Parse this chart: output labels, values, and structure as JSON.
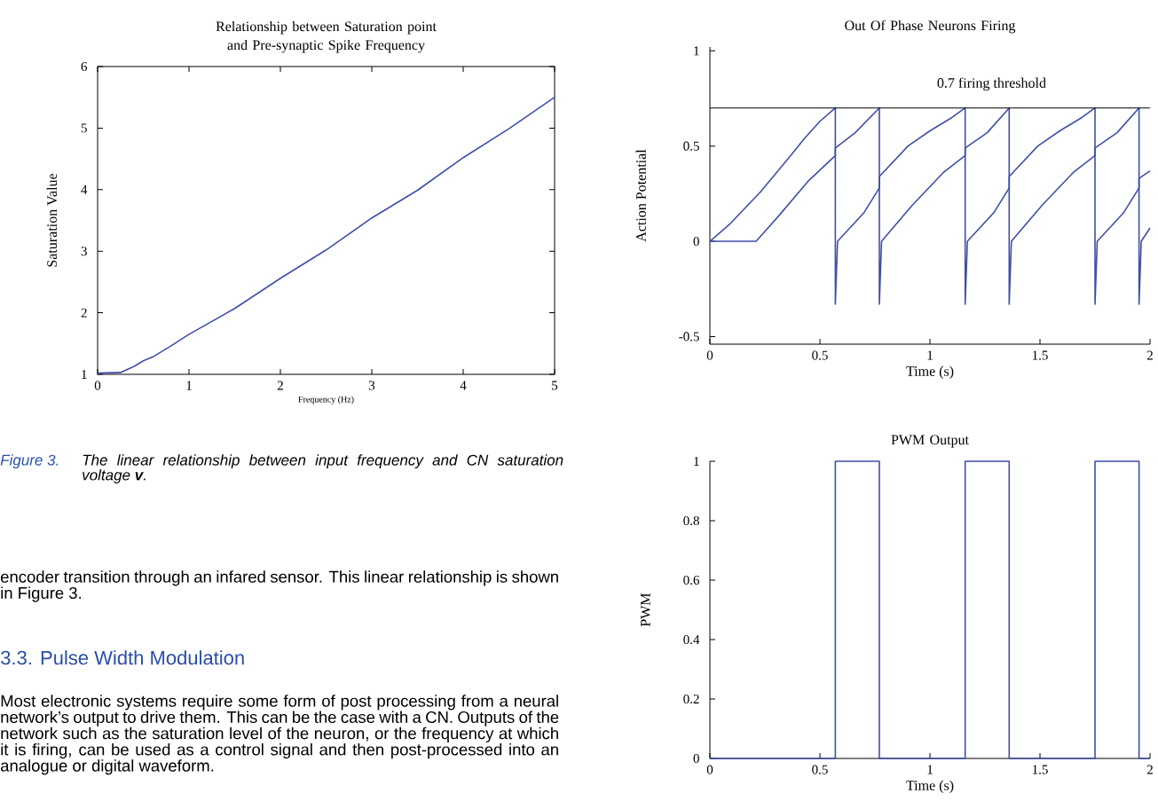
{
  "chart_data": [
    {
      "type": "line",
      "title": "Relationship between Saturation point and Pre-synaptic Spike Frequency",
      "xlabel": "Frequency (Hz)",
      "ylabel": "Saturation Value",
      "color": "#3f4fa8",
      "x": [
        0,
        0.25,
        0.4,
        0.5,
        0.6,
        0.8,
        1,
        1.5,
        2,
        2.5,
        3,
        3.5,
        4,
        4.5,
        5
      ],
      "values": [
        1.02,
        1.03,
        1.13,
        1.22,
        1.28,
        1.46,
        1.65,
        2.07,
        2.56,
        3.02,
        3.54,
        3.99,
        4.52,
        4.99,
        5.5
      ],
      "xlim": [
        0,
        5
      ],
      "ylim": [
        1,
        6
      ],
      "xticks": [
        0,
        1,
        2,
        3,
        4,
        5
      ],
      "yticks": [
        1,
        2,
        3,
        4,
        5,
        6
      ],
      "annotations": [
        "Figure 3.",
        "The linear relationship between input frequency and CN saturation voltage **v**.",
        "encoder transition through an infared sensor. This linear relationship is shown in Figure 3.",
        "3.3.   Pulse Width Modulation",
        "Most electronic systems require some form of post processing from a neural network’s output to drive them. This can be the case with a CN. Outputs of the network such as the saturation level of the neuron, or the frequency at which it is firing, can be used as a control signal and then post-processed into an analogue or digital waveform."
      ]
    },
    {
      "type": "line",
      "title": "Out Of Phase Neurons Firing",
      "xlabel": "Time (s)",
      "ylabel": "Action Potential",
      "series": [
        {
          "color": "#3f4fa8",
          "x": [
            0,
            0.09,
            0.23,
            0.36,
            0.43,
            0.5,
            0.57,
            0.57,
            0.58,
            0.62,
            0.7,
            0.77,
            0.77,
            0.9,
            1.0,
            1.1,
            1.16,
            1.16,
            1.17,
            1.21,
            1.29,
            1.36,
            1.36,
            1.49,
            1.59,
            1.69,
            1.75,
            1.75,
            1.76,
            1.8,
            1.88,
            1.95,
            1.95,
            2.0
          ],
          "values": [
            0,
            0.09,
            0.26,
            0.44,
            0.54,
            0.63,
            0.7,
            -0.33,
            0,
            0.05,
            0.15,
            0.28,
            0.34,
            0.5,
            0.58,
            0.65,
            0.7,
            -0.33,
            0,
            0.05,
            0.15,
            0.28,
            0.34,
            0.5,
            0.58,
            0.65,
            0.7,
            -0.33,
            0,
            0.05,
            0.15,
            0.28,
            0.33,
            0.37
          ]
        },
        {
          "color": "#3f4fa8",
          "x": [
            0,
            0.21,
            0.31,
            0.45,
            0.57,
            0.57,
            0.66,
            0.77,
            0.77,
            0.78,
            0.92,
            1.06,
            1.16,
            1.16,
            1.26,
            1.36,
            1.36,
            1.37,
            1.51,
            1.65,
            1.75,
            1.75,
            1.85,
            1.95,
            1.95,
            1.96,
            2.0
          ],
          "values": [
            0,
            0,
            0.13,
            0.32,
            0.45,
            0.49,
            0.57,
            0.7,
            -0.33,
            0,
            0.19,
            0.36,
            0.45,
            0.49,
            0.57,
            0.7,
            -0.33,
            0,
            0.19,
            0.36,
            0.45,
            0.49,
            0.57,
            0.7,
            -0.33,
            0,
            0.07
          ]
        }
      ],
      "ref_lines": [
        {
          "axis": "y",
          "value": 0.7,
          "label": "0.7 firing threshold",
          "color": "#000000"
        }
      ],
      "xlim": [
        0,
        2
      ],
      "ylim": [
        -0.54,
        1.02
      ],
      "xticks": [
        0,
        0.5,
        1,
        1.5,
        2
      ],
      "yticks": [
        -0.5,
        0,
        0.5,
        1
      ]
    },
    {
      "type": "step",
      "title": "PWM Output",
      "xlabel": "Time (s)",
      "ylabel": "PWM",
      "color": "#3f4fa8",
      "x": [
        0,
        0.57,
        0.77,
        1.16,
        1.36,
        1.75,
        1.95,
        2
      ],
      "values": [
        0,
        1,
        0,
        1,
        0,
        1,
        0,
        0
      ],
      "xlim": [
        0,
        2
      ],
      "ylim": [
        0,
        1
      ],
      "xticks": [
        0,
        0.5,
        1,
        1.5,
        2
      ],
      "yticks": [
        0,
        0.2,
        0.4,
        0.6,
        0.8,
        1
      ]
    }
  ]
}
